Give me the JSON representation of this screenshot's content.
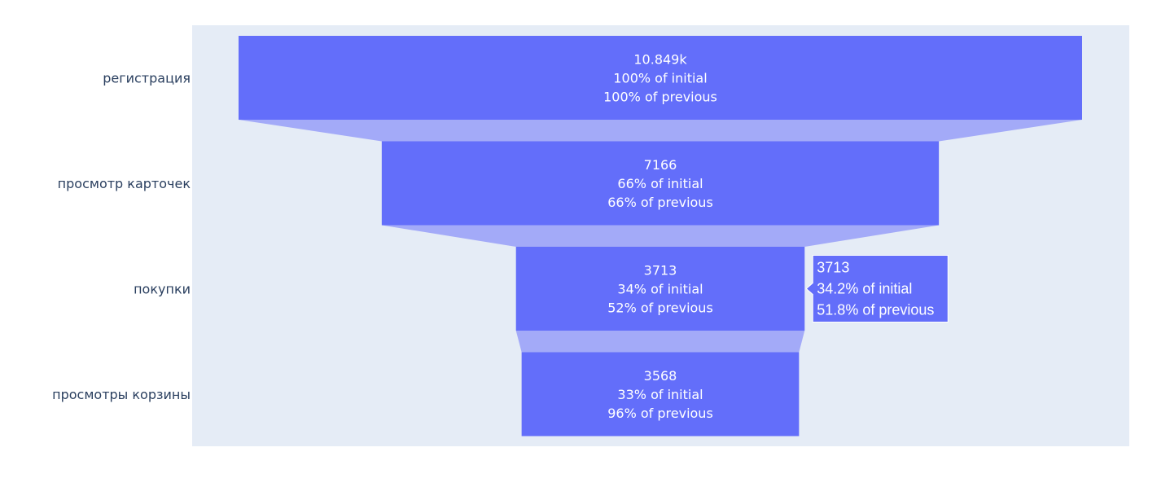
{
  "chart_data": {
    "type": "funnel",
    "title": "",
    "xlabel": "",
    "ylabel": "",
    "stages": [
      {
        "label": "регистрация",
        "value": 10849,
        "value_text": "10.849k",
        "initial_text": "100% of initial",
        "previous_text": "100% of previous"
      },
      {
        "label": "просмотр карточек",
        "value": 7166,
        "value_text": "7166",
        "initial_text": "66% of initial",
        "previous_text": "66% of previous"
      },
      {
        "label": "покупки",
        "value": 3713,
        "value_text": "3713",
        "initial_text": "34% of initial",
        "previous_text": "52% of previous"
      },
      {
        "label": "просмотры корзины",
        "value": 3568,
        "value_text": "3568",
        "initial_text": "33% of initial",
        "previous_text": "96% of previous"
      }
    ],
    "hover": {
      "stage_index": 2,
      "lines": [
        "3713",
        "34.2% of initial",
        "51.8% of previous"
      ]
    },
    "colors": {
      "bar": "#636efa",
      "connector": "#a3aaf8",
      "plot_bg": "#e5ecf6",
      "text": "#ffffff",
      "label": "#2a3f5f"
    }
  }
}
